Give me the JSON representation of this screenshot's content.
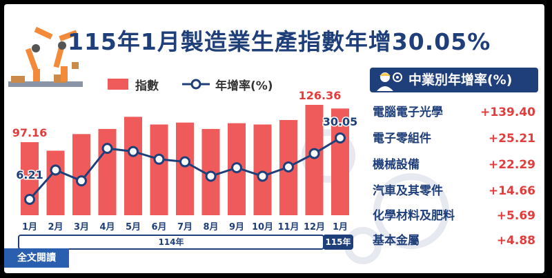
{
  "title": "115年1月製造業生產指數年增30.05%",
  "legend": {
    "bar": "指數",
    "line": "年增率(%)"
  },
  "colors": {
    "bar": "#ef5a5a",
    "line": "#1f3f7a",
    "accent": "#e23c3c",
    "navy": "#1f3f7a"
  },
  "chart_data": {
    "type": "bar",
    "categories": [
      "1月",
      "2月",
      "3月",
      "4月",
      "5月",
      "6月",
      "7月",
      "8月",
      "9月",
      "10月",
      "11月",
      "12月",
      "1月"
    ],
    "year_groups": [
      {
        "label": "114年",
        "count": 12
      },
      {
        "label": "115年",
        "count": 1
      }
    ],
    "series": [
      {
        "name": "指數",
        "type": "bar",
        "values": [
          97.16,
          90.5,
          103.5,
          107.5,
          117.0,
          111.0,
          112.5,
          107.5,
          112.0,
          111.0,
          114.5,
          126.36,
          123.5
        ]
      },
      {
        "name": "年增率(%)",
        "type": "line",
        "values": [
          6.21,
          17.6,
          13.4,
          26.0,
          24.8,
          21.8,
          20.8,
          15.2,
          18.5,
          15.2,
          18.8,
          24.0,
          30.05
        ]
      }
    ],
    "data_labels": [
      {
        "series": "指數",
        "index": 0,
        "text": "97.16"
      },
      {
        "series": "指數",
        "index": 11,
        "text": "126.36"
      },
      {
        "series": "年增率(%)",
        "index": 0,
        "text": "6.21"
      },
      {
        "series": "年增率(%)",
        "index": 12,
        "text": "30.05"
      }
    ]
  },
  "panel": {
    "title": "中業別年增率(%)",
    "rows": [
      {
        "industry": "電腦電子光學",
        "value": "+139.40"
      },
      {
        "industry": "電子零組件",
        "value": "+25.21"
      },
      {
        "industry": "機械設備",
        "value": "+22.29"
      },
      {
        "industry": "汽車及其零件",
        "value": "+14.66"
      },
      {
        "industry": "化學材料及肥料",
        "value": "+5.69"
      },
      {
        "industry": "基本金屬",
        "value": "+4.88"
      }
    ]
  },
  "read_all": "全文閱讀"
}
